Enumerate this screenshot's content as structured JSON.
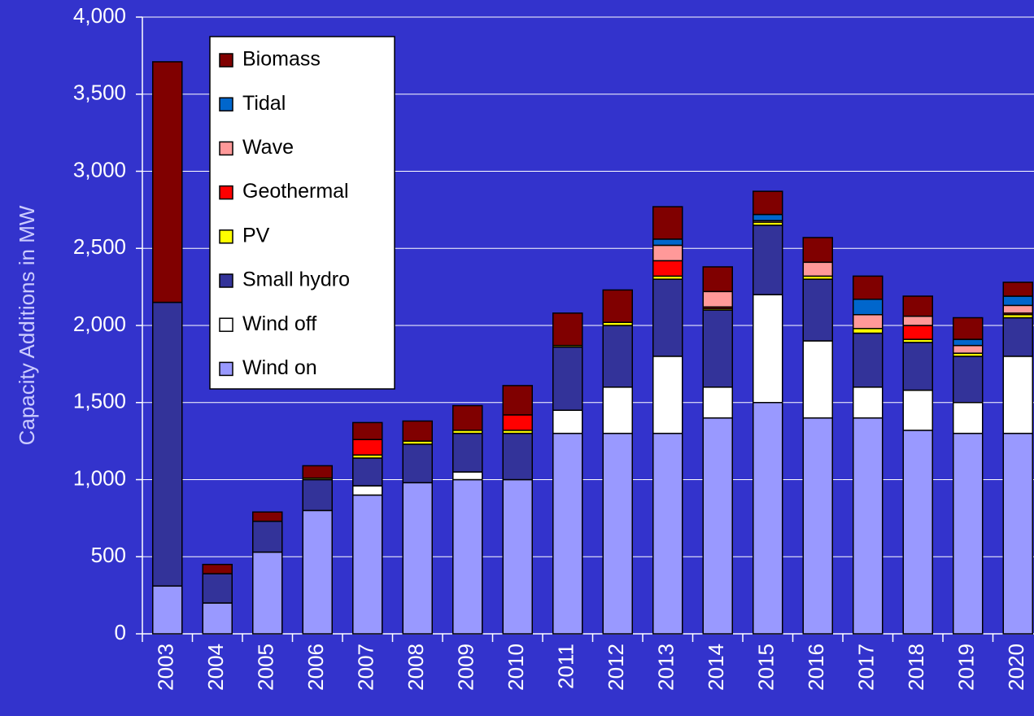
{
  "chart_data": {
    "type": "stacked_bar",
    "y_label": "Capacity Additions in MW",
    "categories": [
      "2003",
      "2004",
      "2005",
      "2006",
      "2007",
      "2008",
      "2009",
      "2010",
      "2011",
      "2012",
      "2013",
      "2014",
      "2015",
      "2016",
      "2017",
      "2018",
      "2019",
      "2020"
    ],
    "series": [
      {
        "name": "Wind on",
        "color": "#9999ff",
        "values": [
          310,
          200,
          530,
          800,
          900,
          980,
          1000,
          1000,
          1300,
          1300,
          1300,
          1400,
          1500,
          1400,
          1400,
          1320,
          1300,
          1300
        ]
      },
      {
        "name": "Wind off",
        "color": "#ffffff",
        "values": [
          0,
          0,
          0,
          0,
          60,
          0,
          50,
          0,
          150,
          300,
          500,
          200,
          700,
          500,
          200,
          260,
          200,
          500
        ]
      },
      {
        "name": "Small hydro",
        "color": "#333399",
        "values": [
          1840,
          190,
          200,
          200,
          180,
          250,
          250,
          300,
          410,
          400,
          500,
          500,
          450,
          400,
          350,
          310,
          300,
          250
        ]
      },
      {
        "name": "PV",
        "color": "#ffff00",
        "values": [
          0,
          0,
          0,
          10,
          20,
          20,
          20,
          20,
          10,
          20,
          20,
          10,
          20,
          20,
          30,
          20,
          20,
          20
        ]
      },
      {
        "name": "Geothermal",
        "color": "#ff0000",
        "values": [
          0,
          0,
          0,
          0,
          100,
          0,
          0,
          100,
          0,
          0,
          100,
          10,
          0,
          0,
          0,
          90,
          0,
          10
        ]
      },
      {
        "name": "Wave",
        "color": "#ff9999",
        "values": [
          0,
          0,
          0,
          0,
          0,
          0,
          0,
          0,
          0,
          0,
          100,
          100,
          10,
          90,
          90,
          60,
          50,
          50
        ]
      },
      {
        "name": "Tidal",
        "color": "#0066cc",
        "values": [
          0,
          0,
          0,
          0,
          0,
          0,
          0,
          0,
          0,
          0,
          40,
          0,
          40,
          0,
          100,
          0,
          40,
          60
        ]
      },
      {
        "name": "Biomass",
        "color": "#800000",
        "values": [
          1560,
          60,
          60,
          80,
          110,
          130,
          160,
          190,
          210,
          210,
          210,
          160,
          150,
          160,
          150,
          130,
          140,
          90
        ]
      }
    ],
    "ylim": [
      0,
      4000
    ],
    "yticks": [
      0,
      500,
      {
        "value": 1000,
        "label": "1,000"
      },
      {
        "value": 1500,
        "label": "1,500"
      },
      {
        "value": 2000,
        "label": "2,000"
      },
      {
        "value": 2500,
        "label": "2,500"
      },
      {
        "value": 3000,
        "label": "3,000"
      },
      {
        "value": 3500,
        "label": "3,500"
      },
      {
        "value": 4000,
        "label": "4,000"
      }
    ],
    "grid": true,
    "legend": "upper left"
  }
}
